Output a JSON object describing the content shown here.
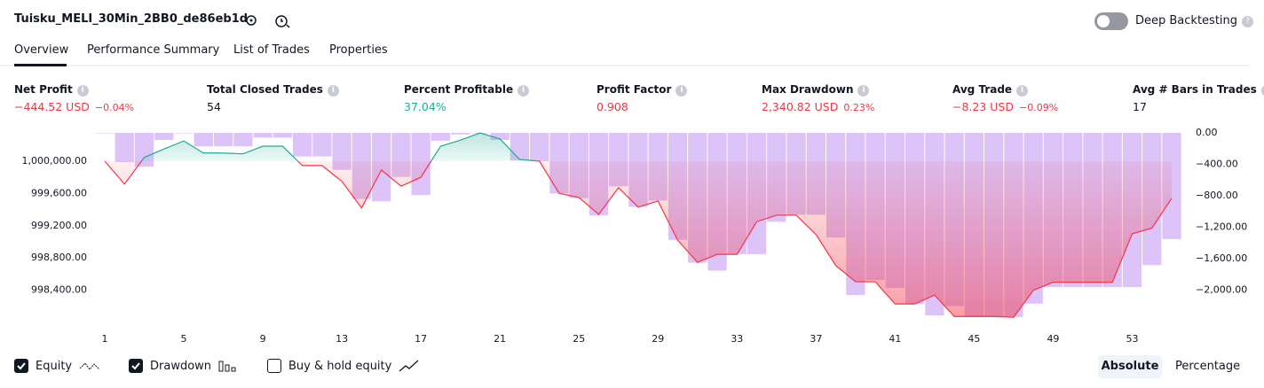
{
  "header": {
    "title": "Tuisku_MELI_30Min_2BB0_de86eb1d",
    "toggle_label": "Deep Backtesting"
  },
  "tabs": [
    "Overview",
    "Performance Summary",
    "List of Trades",
    "Properties"
  ],
  "metrics": [
    {
      "label": "Net Profit",
      "value": "−444.52 USD",
      "percent": "−0.04%"
    },
    {
      "label": "Total Closed Trades",
      "value": "54"
    },
    {
      "label": "Percent Profitable",
      "value": "37.04%"
    },
    {
      "label": "Profit Factor",
      "value": "0.908"
    },
    {
      "label": "Max Drawdown",
      "value": "2,340.82 USD",
      "percent": "0.23%"
    },
    {
      "label": "Avg Trade",
      "value": "−8.23 USD",
      "percent": "−0.09%"
    },
    {
      "label": "Avg # Bars in Trades",
      "value": "17"
    }
  ],
  "chart_data": {
    "type": "line_bar",
    "x": [
      1,
      2,
      3,
      4,
      5,
      6,
      7,
      8,
      9,
      10,
      11,
      12,
      13,
      14,
      15,
      16,
      17,
      18,
      19,
      20,
      21,
      22,
      23,
      24,
      25,
      26,
      27,
      28,
      29,
      30,
      31,
      32,
      33,
      34,
      35,
      36,
      37,
      38,
      39,
      40,
      41,
      42,
      43,
      44,
      45,
      46,
      47,
      48,
      49,
      50,
      51,
      52,
      53,
      54,
      55
    ],
    "xlim": [
      1,
      55
    ],
    "xticks": [
      1,
      5,
      9,
      13,
      17,
      21,
      25,
      29,
      33,
      37,
      41,
      45,
      49,
      53
    ],
    "ylim": [
      997990,
      1000350
    ],
    "yticks": [
      {
        "value": 998400,
        "label": "998,400.00"
      },
      {
        "value": 998800,
        "label": "998,800.00"
      },
      {
        "value": 999200,
        "label": "999,200.00"
      },
      {
        "value": 999600,
        "label": "999,600.00"
      },
      {
        "value": 1000000,
        "label": "1,000,000.00"
      }
    ],
    "y2lim": [
      -2420,
      0
    ],
    "y2ticks": [
      {
        "value": -2000,
        "label": "−2,000.00"
      },
      {
        "value": -1600,
        "label": "−1,600.00"
      },
      {
        "value": -1200,
        "label": "−1,200.00"
      },
      {
        "value": -800,
        "label": "−800.00"
      },
      {
        "value": -400,
        "label": "−400.00"
      },
      {
        "value": 0,
        "label": "0.00"
      }
    ],
    "series": [
      {
        "name": "Equity",
        "color": "#f23645",
        "color_up": "#22ab94",
        "values": [
          1000000,
          999715,
          1000045,
          1000150,
          1000250,
          1000100,
          1000100,
          1000090,
          1000185,
          1000185,
          999945,
          999945,
          999750,
          999420,
          999890,
          999690,
          999800,
          1000185,
          1000260,
          1000350,
          1000275,
          1000020,
          1000000,
          999600,
          999550,
          999340,
          999670,
          999430,
          999505,
          999020,
          998745,
          998845,
          998845,
          999250,
          999330,
          999330,
          999090,
          998705,
          998505,
          998505,
          998230,
          998230,
          998340,
          998075,
          998075,
          998075,
          998065,
          998400,
          998500,
          998500,
          998500,
          998500,
          999100,
          999170,
          999540
        ]
      },
      {
        "name": "Drawdown",
        "color": "#dcc4f8",
        "axis": "y2",
        "values": [
          0,
          -370,
          -430,
          -90,
          0,
          -170,
          -170,
          -170,
          -60,
          -60,
          -300,
          -300,
          -470,
          -840,
          -870,
          -560,
          -790,
          -100,
          -20,
          0,
          -90,
          -350,
          -360,
          -770,
          -830,
          -1050,
          -680,
          -940,
          -860,
          -1360,
          -1650,
          -1750,
          -1540,
          -1540,
          -1130,
          -1040,
          -1040,
          -1330,
          -2060,
          -1870,
          -1970,
          -2170,
          -2320,
          -2200,
          -2340,
          -2340,
          -2340,
          -2170,
          -1960,
          -1960,
          -1960,
          -1960,
          -1960,
          -1680,
          -1350
        ]
      }
    ]
  },
  "legend_options": [
    "Equity",
    "Drawdown",
    "Buy & hold equity"
  ],
  "buttons": [
    "Absolute",
    "Percentage"
  ]
}
